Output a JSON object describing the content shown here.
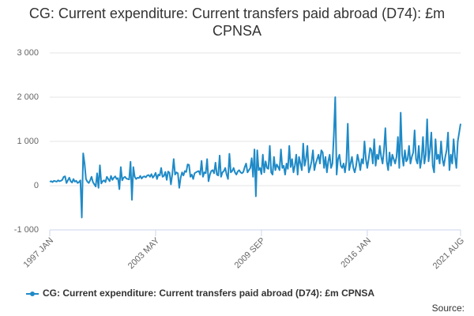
{
  "chart_data": {
    "type": "line",
    "title": "CG: Current expenditure: Current transfers paid abroad (D74): £m CPNSA",
    "source": "Source:",
    "categories": [
      "1997 JAN",
      null,
      null,
      null,
      null,
      null,
      null,
      null,
      null,
      null,
      null,
      null,
      null,
      null,
      null,
      null,
      null,
      null,
      null,
      null,
      null,
      null,
      null,
      null,
      null,
      null,
      null,
      null,
      null,
      null,
      null,
      null,
      null,
      null,
      null,
      null,
      null,
      null,
      null,
      null,
      null,
      null,
      null,
      null,
      null,
      null,
      null,
      null,
      null,
      null,
      null,
      null,
      null,
      null,
      null,
      null,
      null,
      null,
      null,
      null,
      null,
      null,
      null,
      null,
      null,
      null,
      null,
      null,
      null,
      null,
      null,
      null,
      null,
      null,
      null,
      null,
      "2003 MAY",
      null,
      null,
      null,
      null,
      null,
      null,
      null,
      null,
      null,
      null,
      null,
      null,
      null,
      null,
      null,
      null,
      null,
      null,
      null,
      null,
      null,
      null,
      null,
      null,
      null,
      null,
      null,
      null,
      null,
      null,
      null,
      null,
      null,
      null,
      null,
      null,
      null,
      null,
      null,
      null,
      null,
      null,
      null,
      null,
      null,
      null,
      null,
      null,
      null,
      null,
      null,
      null,
      null,
      null,
      null,
      null,
      null,
      null,
      null,
      null,
      null,
      null,
      null,
      null,
      null,
      null,
      null,
      null,
      null,
      null,
      null,
      null,
      null,
      null,
      null,
      "2009 SEP",
      null,
      null,
      null,
      null,
      null,
      null,
      null,
      null,
      null,
      null,
      null,
      null,
      null,
      null,
      null,
      null,
      null,
      null,
      null,
      null,
      null,
      null,
      null,
      null,
      null,
      null,
      null,
      null,
      null,
      null,
      null,
      null,
      null,
      null,
      null,
      null,
      null,
      null,
      null,
      null,
      null,
      null,
      null,
      null,
      null,
      null,
      null,
      null,
      null,
      null,
      null,
      null,
      null,
      null,
      null,
      null,
      null,
      null,
      null,
      null,
      null,
      null,
      null,
      null,
      null,
      null,
      null,
      null,
      null,
      null,
      null,
      null,
      null,
      null,
      null,
      "2016 JAN",
      null,
      null,
      null,
      null,
      null,
      null,
      null,
      null,
      null,
      null,
      null,
      null,
      null,
      null,
      null,
      null,
      null,
      null,
      null,
      null,
      null,
      null,
      null,
      null,
      null,
      null,
      null,
      null,
      null,
      null,
      null,
      null,
      null,
      null,
      null,
      null,
      null,
      null,
      null,
      null,
      null,
      null,
      null,
      null,
      null,
      null,
      null,
      null,
      null,
      null,
      null,
      null,
      null,
      null,
      null,
      null,
      null,
      null,
      null,
      null,
      null,
      null,
      null,
      null,
      null,
      null,
      "2021 AUG"
    ],
    "series": [
      {
        "name": "CG: Current expenditure: Current transfers paid abroad (D74): £m CPNSA",
        "color": "#1f8ac7",
        "values": [
          90,
          100,
          80,
          110,
          100,
          90,
          120,
          100,
          110,
          130,
          200,
          210,
          60,
          120,
          180,
          100,
          70,
          150,
          90,
          110,
          60,
          80,
          120,
          -720,
          730,
          500,
          150,
          90,
          60,
          120,
          200,
          80,
          30,
          -20,
          280,
          -50,
          460,
          50,
          100,
          120,
          80,
          200,
          150,
          100,
          220,
          130,
          180,
          210,
          150,
          170,
          -80,
          420,
          120,
          180,
          200,
          160,
          150,
          140,
          540,
          -320,
          420,
          200,
          150,
          180,
          170,
          220,
          160,
          200,
          210,
          190,
          230,
          240,
          200,
          260,
          180,
          220,
          290,
          150,
          250,
          230,
          400,
          200,
          220,
          310,
          130,
          320,
          290,
          30,
          260,
          600,
          250,
          300,
          280,
          -50,
          180,
          300,
          230,
          330,
          310,
          480,
          470,
          200,
          250,
          150,
          280,
          300,
          320,
          330,
          250,
          560,
          200,
          300,
          280,
          600,
          100,
          250,
          330,
          350,
          280,
          520,
          250,
          230,
          680,
          200,
          300,
          330,
          400,
          250,
          150,
          720,
          300,
          330,
          400,
          300,
          250,
          320,
          350,
          300,
          280,
          310,
          420,
          500,
          300,
          350,
          400,
          620,
          200,
          820,
          -240,
          800,
          350,
          400,
          260,
          700,
          300,
          550,
          400,
          380,
          900,
          300,
          250,
          650,
          350,
          480,
          420,
          350,
          820,
          400,
          450,
          250,
          500,
          380,
          900,
          420,
          600,
          300,
          450,
          700,
          250,
          650,
          500,
          350,
          950,
          450,
          600,
          900,
          300,
          400,
          550,
          800,
          350,
          500,
          600,
          700,
          500,
          800,
          750,
          400,
          650,
          300,
          550,
          700,
          400,
          500,
          1150,
          2000,
          250,
          600,
          700,
          450,
          400,
          500,
          300,
          550,
          1400,
          350,
          500,
          650,
          400,
          300,
          450,
          700,
          550,
          350,
          600,
          500,
          1000,
          600,
          400,
          600,
          850,
          800,
          500,
          1050,
          450,
          700,
          600,
          900,
          650,
          500,
          800,
          1300,
          550,
          350,
          750,
          450,
          700,
          600,
          500,
          650,
          1100,
          400,
          1650,
          700,
          450,
          800,
          550,
          600,
          900,
          500,
          650,
          750,
          1250,
          600,
          500,
          900,
          400,
          600,
          1100,
          500,
          700,
          1500,
          550,
          800,
          1200,
          450,
          300,
          1050,
          600,
          700,
          500,
          1000,
          600,
          450,
          650,
          800,
          1200,
          350,
          700,
          500,
          1050,
          650,
          400,
          1000,
          1200,
          1400
        ]
      }
    ],
    "ylim": [
      -1000,
      3000
    ],
    "yticks": [
      {
        "value": -1000,
        "label": "-1 000"
      },
      0,
      {
        "value": 1000,
        "label": "1 000"
      },
      {
        "value": 2000,
        "label": "2 000"
      },
      {
        "value": 3000,
        "label": "3 000"
      }
    ],
    "grid": true
  }
}
